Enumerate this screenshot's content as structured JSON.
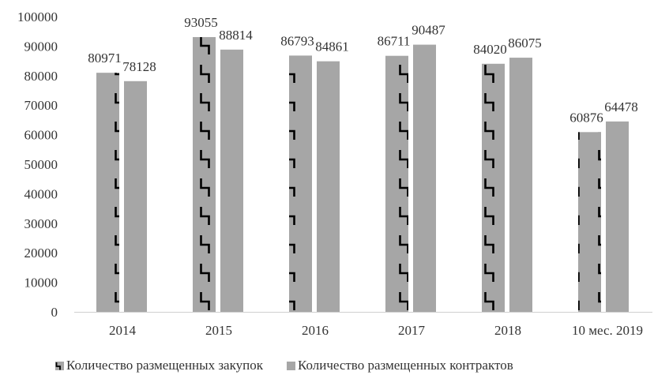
{
  "chart_data": {
    "type": "bar",
    "categories": [
      "2014",
      "2015",
      "2016",
      "2017",
      "2018",
      "10 мес. 2019"
    ],
    "series": [
      {
        "name": "Количество размещенных закупок",
        "values": [
          80971,
          93055,
          86793,
          86711,
          84020,
          60876
        ],
        "color": "#a6a6a6",
        "pattern": "zigzag"
      },
      {
        "name": "Количество размещенных контрактов",
        "values": [
          78128,
          88814,
          84861,
          90487,
          86075,
          64478
        ],
        "color": "#a6a6a6",
        "pattern": "solid"
      }
    ],
    "y_ticks": [
      "0",
      "10000",
      "20000",
      "30000",
      "40000",
      "50000",
      "60000",
      "70000",
      "80000",
      "90000",
      "100000"
    ],
    "ylim": [
      0,
      100000
    ],
    "grid": false,
    "legend_position": "bottom"
  }
}
